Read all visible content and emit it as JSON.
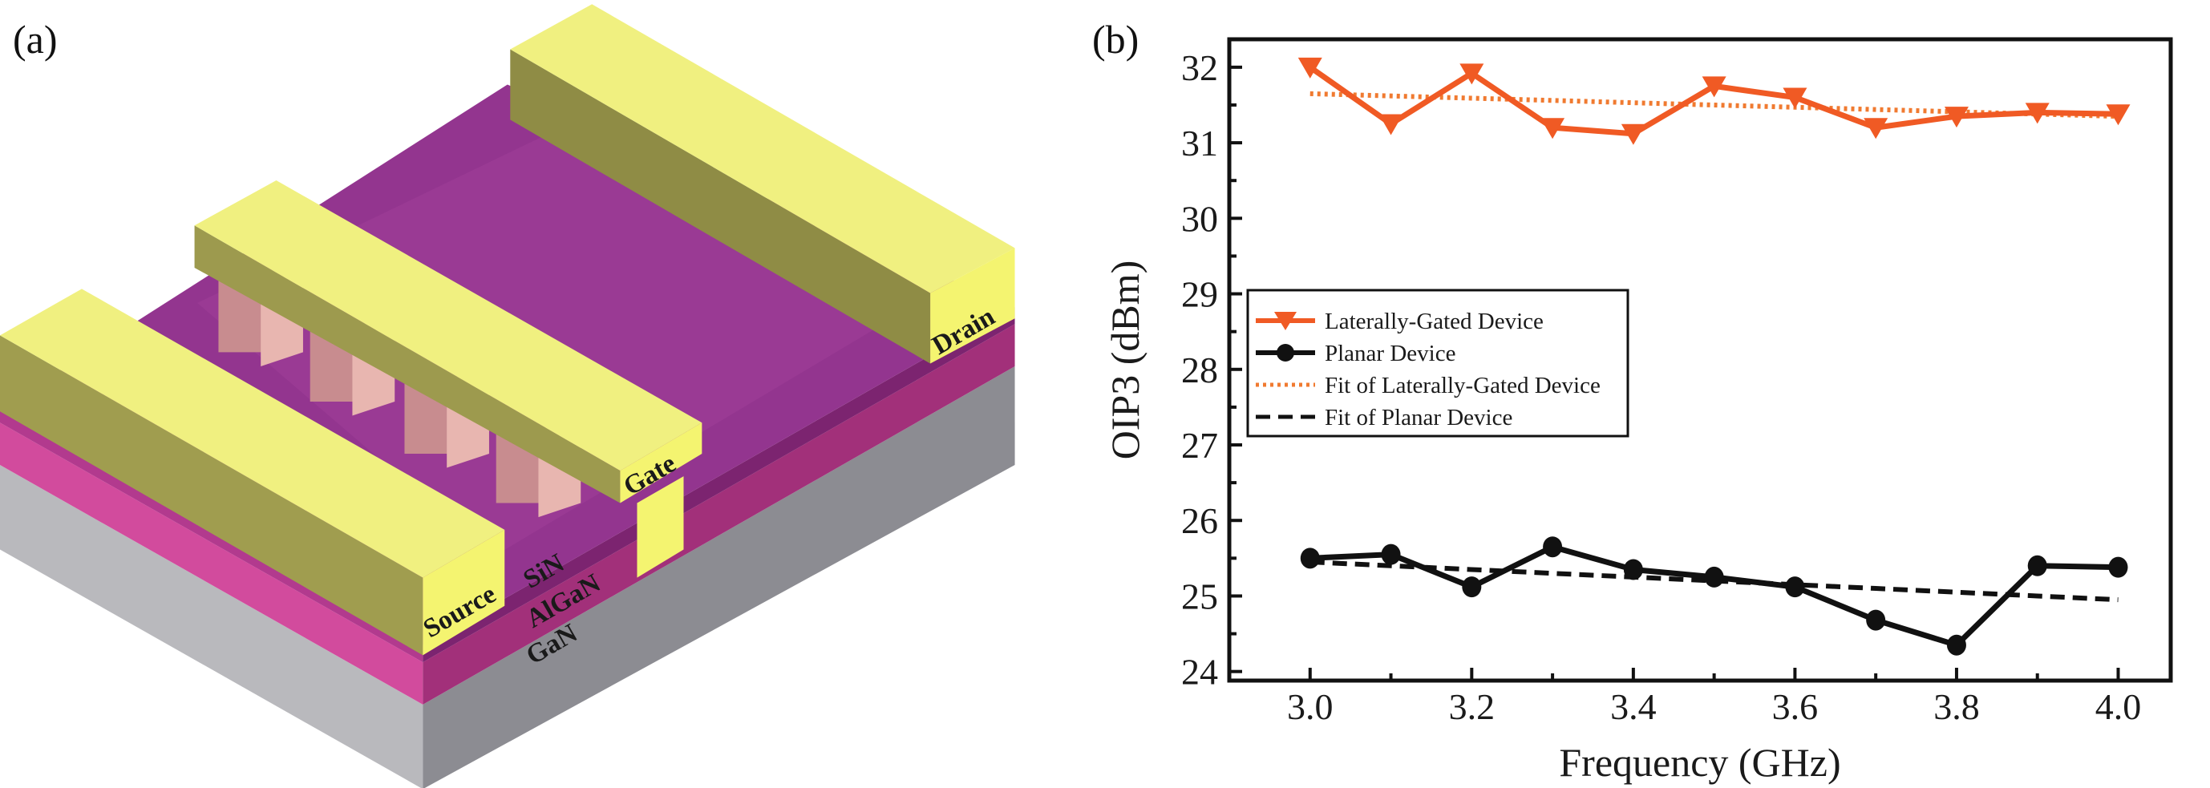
{
  "panels": {
    "a_label": "(a)",
    "b_label": "(b)"
  },
  "diagram": {
    "labels": {
      "source": "Source",
      "gate": "Gate",
      "drain": "Drain",
      "sin": "SiN",
      "algan": "AlGaN",
      "gan": "GaN"
    },
    "colors": {
      "metal": "#eef07a",
      "layer_top": "#8e2f91",
      "algan": "#d84aa0",
      "substrate": "#b8b8bc"
    }
  },
  "chart_data": {
    "type": "line",
    "title": "",
    "xlabel": "Frequency (GHz)",
    "ylabel": "OIP3 (dBm)",
    "xlim": [
      2.9,
      4.065
    ],
    "ylim": [
      23.88,
      32.37
    ],
    "xticks": [
      "3.0",
      "3.2",
      "3.4",
      "3.6",
      "3.8",
      "4.0"
    ],
    "yticks": [
      "24",
      "25",
      "26",
      "27",
      "28",
      "29",
      "30",
      "31",
      "32"
    ],
    "grid": false,
    "legend_position": "middle-left",
    "x": [
      3.0,
      3.1,
      3.2,
      3.3,
      3.4,
      3.5,
      3.6,
      3.7,
      3.8,
      3.9,
      4.0
    ],
    "series": [
      {
        "name": "Laterally-Gated Device",
        "color": "#f05a24",
        "style": "solid",
        "marker": "triangle-down",
        "values": [
          32.0,
          31.25,
          31.92,
          31.2,
          31.12,
          31.75,
          31.6,
          31.2,
          31.35,
          31.4,
          31.38
        ]
      },
      {
        "name": "Planar Device",
        "color": "#111111",
        "style": "solid",
        "marker": "circle",
        "values": [
          25.5,
          25.55,
          25.12,
          25.65,
          25.35,
          25.25,
          25.12,
          24.68,
          24.35,
          25.4,
          25.38
        ]
      },
      {
        "name": "Fit of Laterally-Gated Device",
        "color": "#f07a30",
        "style": "dotted",
        "marker": "none",
        "values": [
          31.65,
          31.62,
          31.59,
          31.56,
          31.53,
          31.5,
          31.47,
          31.44,
          31.41,
          31.38,
          31.35
        ]
      },
      {
        "name": "Fit of Planar Device",
        "color": "#111111",
        "style": "dashed",
        "marker": "none",
        "values": [
          25.45,
          25.4,
          25.35,
          25.3,
          25.25,
          25.2,
          25.15,
          25.1,
          25.05,
          25.0,
          24.95
        ]
      }
    ]
  }
}
